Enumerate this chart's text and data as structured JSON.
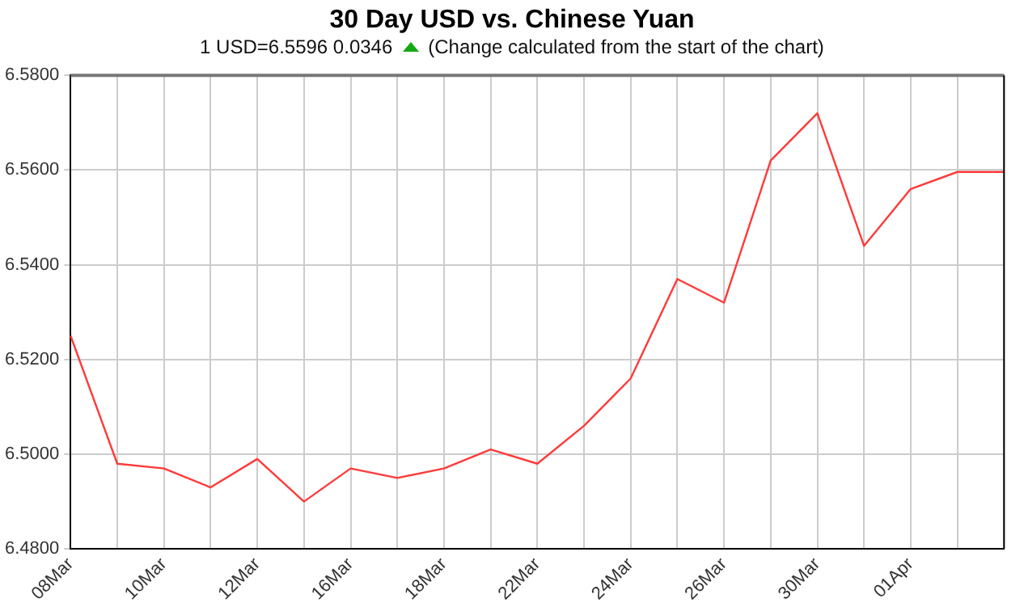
{
  "chart_data": {
    "type": "line",
    "title": "30 Day USD vs. Chinese Yuan",
    "subtitle": "1 USD=6.5596  0.0346",
    "annotations": [
      "(Change calculated from the start of the chart)"
    ],
    "categories": [
      "08Mar",
      null,
      "10Mar",
      null,
      "12Mar",
      null,
      "16Mar",
      null,
      "18Mar",
      null,
      "22Mar",
      null,
      "24Mar",
      null,
      "26Mar",
      null,
      "30Mar",
      null,
      "01Apr",
      null,
      null
    ],
    "series": [
      {
        "color": "#ff3a3a",
        "values": [
          6.525,
          6.498,
          6.497,
          6.493,
          6.499,
          6.49,
          6.497,
          6.495,
          6.497,
          6.501,
          6.498,
          6.506,
          6.516,
          6.537,
          6.532,
          6.562,
          6.572,
          6.544,
          6.556,
          6.5596,
          6.5596
        ]
      }
    ],
    "ylim": [
      6.48,
      6.58
    ],
    "yticks": [
      {
        "value": 6.48,
        "label": "6.4800"
      },
      {
        "value": 6.5,
        "label": "6.5000"
      },
      {
        "value": 6.52,
        "label": "6.5200"
      },
      {
        "value": 6.54,
        "label": "6.5400"
      },
      {
        "value": 6.56,
        "label": "6.5600"
      },
      {
        "value": 6.58,
        "label": "6.5800"
      }
    ],
    "grid": true,
    "marker": "none",
    "line_style": "solid"
  }
}
